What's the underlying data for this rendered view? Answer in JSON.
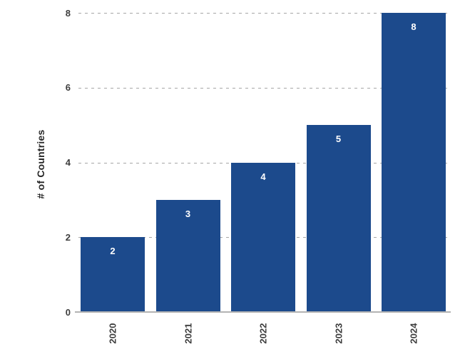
{
  "chart_data": {
    "type": "bar",
    "title": "",
    "xlabel": "",
    "ylabel": "# of Countries",
    "categories": [
      "2020",
      "2021",
      "2022",
      "2023",
      "2024"
    ],
    "values": [
      2,
      3,
      4,
      5,
      8
    ],
    "ylim": [
      0,
      8
    ],
    "yticks": [
      0,
      2,
      4,
      6,
      8
    ],
    "grid": "horizontal-dashed",
    "legend": "none",
    "colors": {
      "bar": "#1c4a8c",
      "bar_value_label": "#ffffff",
      "gridline": "#a6a6a6",
      "axis_line": "#b3b3b3",
      "tick_label": "#3d3d3d",
      "axis_title": "#262626",
      "background": "#ffffff"
    }
  }
}
